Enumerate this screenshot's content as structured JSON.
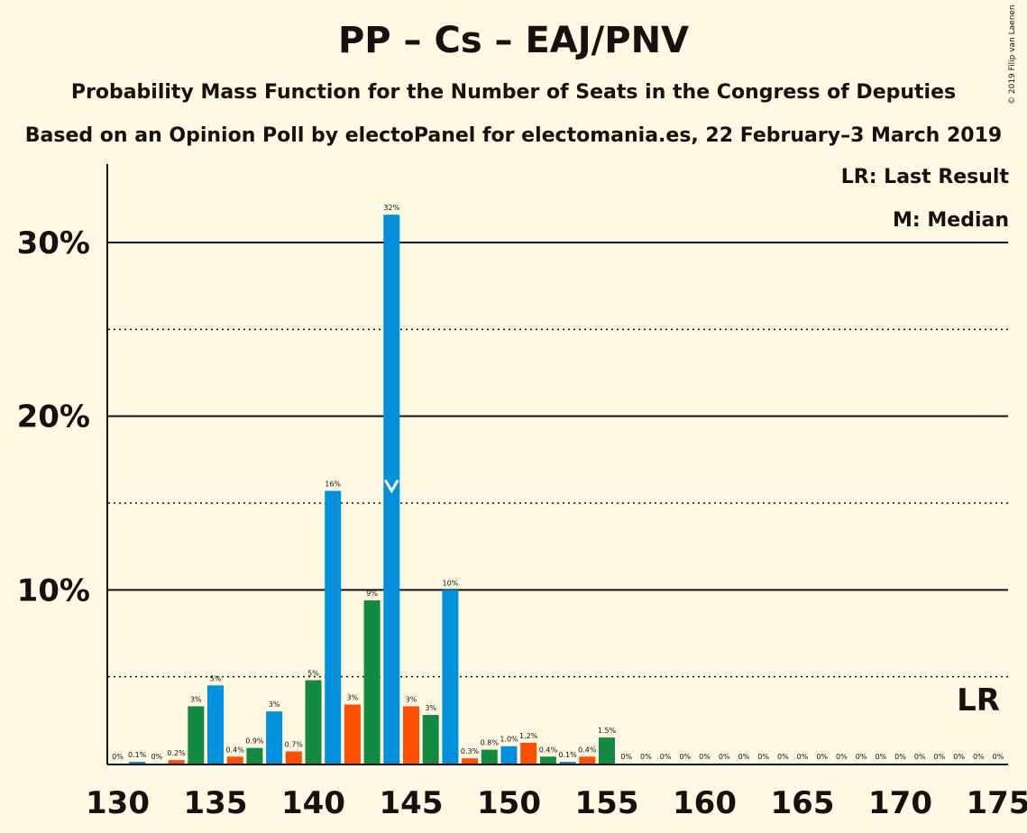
{
  "title": "PP – Cs – EAJ/PNV",
  "subtitle": "Probability Mass Function for the Number of Seats in the Congress of Deputies",
  "source": "Based on an Opinion Poll by electoPanel for electomania.es, 22 February–3 March 2019",
  "copyright": "© 2019 Filip van Laenen",
  "legend": {
    "lr": "LR: Last Result",
    "median": "M: Median"
  },
  "lr_marker": "LR",
  "median_marker": "M",
  "colors": {
    "pp": "#0090DC",
    "cs": "#FF4F00",
    "pnv": "#138A41",
    "background": "#FFF8E3",
    "text": "#1a0f0f"
  },
  "chart_data": {
    "type": "bar",
    "xlabel": "",
    "ylabel": "",
    "xlim": [
      130,
      175
    ],
    "ylim": [
      0,
      34
    ],
    "y_ticks": [
      "10%",
      "20%",
      "30%"
    ],
    "y_tick_values": [
      10,
      20,
      30
    ],
    "x_ticks": [
      130,
      135,
      140,
      145,
      150,
      155,
      160,
      165,
      170,
      175
    ],
    "median_seat": 144,
    "last_result_seat": 174,
    "bars": [
      {
        "seat": 130,
        "value": 0,
        "label": "0%",
        "color": "pnv"
      },
      {
        "seat": 131,
        "value": 0.1,
        "label": "0.1%",
        "color": "pp"
      },
      {
        "seat": 132,
        "value": 0,
        "label": "0%",
        "color": "cs"
      },
      {
        "seat": 133,
        "value": 0.2,
        "label": "0.2%",
        "color": "cs"
      },
      {
        "seat": 134,
        "value": 3.3,
        "label": "3%",
        "color": "pnv"
      },
      {
        "seat": 135,
        "value": 4.5,
        "label": "5%",
        "color": "pp"
      },
      {
        "seat": 136,
        "value": 0.4,
        "label": "0.4%",
        "color": "cs"
      },
      {
        "seat": 137,
        "value": 0.9,
        "label": "0.9%",
        "color": "pnv"
      },
      {
        "seat": 138,
        "value": 3.0,
        "label": "3%",
        "color": "pp"
      },
      {
        "seat": 139,
        "value": 0.7,
        "label": "0.7%",
        "color": "cs"
      },
      {
        "seat": 140,
        "value": 4.8,
        "label": "5%",
        "color": "pnv"
      },
      {
        "seat": 141,
        "value": 15.7,
        "label": "16%",
        "color": "pp"
      },
      {
        "seat": 142,
        "value": 3.4,
        "label": "3%",
        "color": "cs"
      },
      {
        "seat": 143,
        "value": 9.4,
        "label": "9%",
        "color": "pnv"
      },
      {
        "seat": 144,
        "value": 31.6,
        "label": "32%",
        "color": "pp"
      },
      {
        "seat": 145,
        "value": 3.3,
        "label": "3%",
        "color": "cs"
      },
      {
        "seat": 146,
        "value": 2.8,
        "label": "3%",
        "color": "pnv"
      },
      {
        "seat": 147,
        "value": 10.0,
        "label": "10%",
        "color": "pp"
      },
      {
        "seat": 148,
        "value": 0.3,
        "label": "0.3%",
        "color": "cs"
      },
      {
        "seat": 149,
        "value": 0.8,
        "label": "0.8%",
        "color": "pnv"
      },
      {
        "seat": 150,
        "value": 1.0,
        "label": "1.0%",
        "color": "pp"
      },
      {
        "seat": 151,
        "value": 1.2,
        "label": "1.2%",
        "color": "cs"
      },
      {
        "seat": 152,
        "value": 0.4,
        "label": "0.4%",
        "color": "pnv"
      },
      {
        "seat": 153,
        "value": 0.1,
        "label": "0.1%",
        "color": "pp"
      },
      {
        "seat": 154,
        "value": 0.4,
        "label": "0.4%",
        "color": "cs"
      },
      {
        "seat": 155,
        "value": 1.5,
        "label": "1.5%",
        "color": "pnv"
      },
      {
        "seat": 156,
        "value": 0,
        "label": "0%",
        "color": "pp"
      },
      {
        "seat": 157,
        "value": 0,
        "label": "0%",
        "color": "cs"
      },
      {
        "seat": 158,
        "value": 0,
        "label": "0%",
        "color": "pnv"
      },
      {
        "seat": 159,
        "value": 0,
        "label": "0%",
        "color": "pp"
      },
      {
        "seat": 160,
        "value": 0,
        "label": "0%",
        "color": "cs"
      },
      {
        "seat": 161,
        "value": 0,
        "label": "0%",
        "color": "pnv"
      },
      {
        "seat": 162,
        "value": 0,
        "label": "0%",
        "color": "pp"
      },
      {
        "seat": 163,
        "value": 0,
        "label": "0%",
        "color": "cs"
      },
      {
        "seat": 164,
        "value": 0,
        "label": "0%",
        "color": "pnv"
      },
      {
        "seat": 165,
        "value": 0,
        "label": "0%",
        "color": "pp"
      },
      {
        "seat": 166,
        "value": 0,
        "label": "0%",
        "color": "cs"
      },
      {
        "seat": 167,
        "value": 0,
        "label": "0%",
        "color": "pnv"
      },
      {
        "seat": 168,
        "value": 0,
        "label": "0%",
        "color": "pp"
      },
      {
        "seat": 169,
        "value": 0,
        "label": "0%",
        "color": "cs"
      },
      {
        "seat": 170,
        "value": 0,
        "label": "0%",
        "color": "pnv"
      },
      {
        "seat": 171,
        "value": 0,
        "label": "0%",
        "color": "pp"
      },
      {
        "seat": 172,
        "value": 0,
        "label": "0%",
        "color": "cs"
      },
      {
        "seat": 173,
        "value": 0,
        "label": "0%",
        "color": "pnv"
      },
      {
        "seat": 174,
        "value": 0,
        "label": "0%",
        "color": "pp"
      },
      {
        "seat": 175,
        "value": 0,
        "label": "0%",
        "color": "cs"
      }
    ]
  }
}
